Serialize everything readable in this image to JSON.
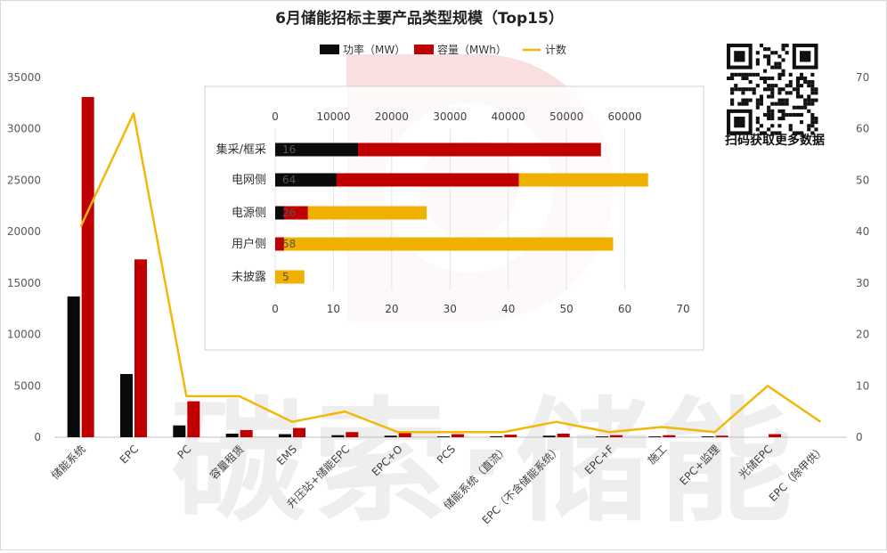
{
  "chart_data": [
    {
      "type": "bar+line",
      "title": "6月储能招标主要产品类型规模（Top15）",
      "categories": [
        "储能系统",
        "EPC",
        "PC",
        "容量租赁",
        "EMS",
        "升压站+储能EPC",
        "EPC+O",
        "PCS",
        "储能系统（直流）",
        "EPC（不含储能系统）",
        "EPC+F",
        "施工",
        "EPC+监理",
        "光储EPC",
        "EPC（除甲供）"
      ],
      "series": [
        {
          "name": "功率（MW）",
          "axis": "left",
          "color": "#0a0a0a",
          "values": [
            13700,
            6150,
            1150,
            350,
            300,
            200,
            150,
            80,
            100,
            150,
            80,
            80,
            80,
            0,
            0
          ]
        },
        {
          "name": "容量（MWh）",
          "axis": "left",
          "color": "#c00000",
          "values": [
            33100,
            17300,
            3500,
            700,
            900,
            500,
            400,
            300,
            250,
            350,
            200,
            200,
            150,
            300,
            0
          ]
        },
        {
          "name": "计数",
          "axis": "right",
          "type": "line",
          "color": "#f2b807",
          "values": [
            41,
            63,
            8,
            8,
            3,
            5,
            1,
            1,
            1,
            3,
            1,
            2,
            1,
            10,
            3
          ]
        }
      ],
      "yticks_left": [
        "0",
        "5000",
        "10000",
        "15000",
        "20000",
        "25000",
        "30000",
        "35000"
      ],
      "yticks_right": [
        "0",
        "10",
        "20",
        "30",
        "40",
        "50",
        "60",
        "70"
      ],
      "ylim_left": [
        0,
        35000
      ],
      "ylim_right": [
        0,
        70
      ],
      "grid": false,
      "legend_position": "top"
    },
    {
      "type": "bar",
      "orientation": "horizontal",
      "categories": [
        "集采/框采",
        "电网侧",
        "电源侧",
        "用户侧",
        "未披露"
      ],
      "stacked_series": [
        {
          "name": "功率（MW）",
          "color": "#0a0a0a",
          "values": [
            14200,
            10500,
            1500,
            0,
            0
          ]
        },
        {
          "name": "容量（MWh）",
          "color": "#c00000",
          "values": [
            55900,
            41800,
            5600,
            1500,
            0
          ]
        },
        {
          "name": "计数",
          "color": "#f0b000",
          "values": [
            16,
            64,
            26,
            58,
            5
          ]
        }
      ],
      "count_labels": [
        "16",
        "64",
        "26",
        "58",
        "5"
      ],
      "xticks_top": [
        "0",
        "10000",
        "20000",
        "30000",
        "40000",
        "50000",
        "60000"
      ],
      "xticks_bottom": [
        "0",
        "10",
        "20",
        "30",
        "40",
        "50",
        "60",
        "70"
      ],
      "xlim_top": [
        0,
        70000
      ],
      "xlim_bottom": [
        0,
        70
      ]
    }
  ],
  "legend_labels": [
    "功率（MW）",
    "容量（MWh）",
    "计数"
  ],
  "watermark": "碳索·储能",
  "qr_caption": "扫码获取更多数据",
  "colors": {
    "power": "#0a0a0a",
    "capacity": "#c00000",
    "count_line": "#f2b807",
    "count_bar": "#f0b000"
  }
}
